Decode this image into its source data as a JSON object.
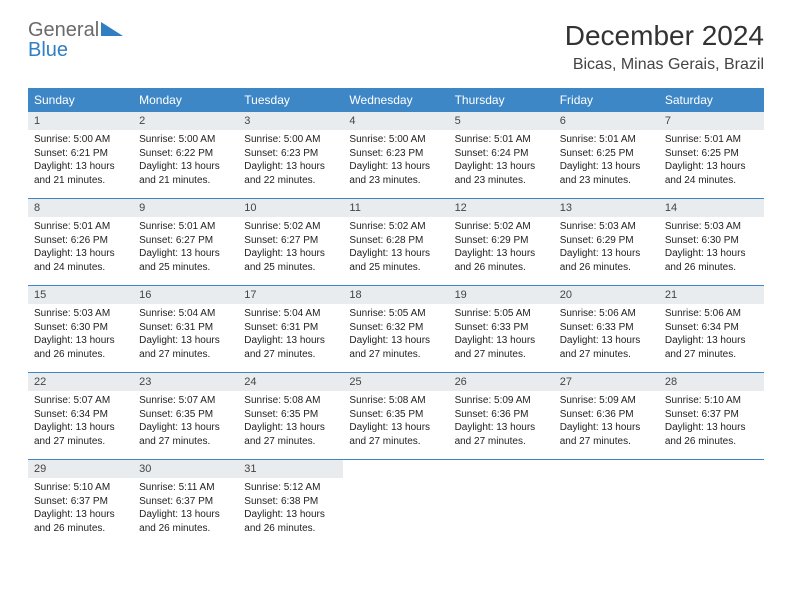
{
  "brand": {
    "general": "General",
    "blue": "Blue"
  },
  "title": "December 2024",
  "location": "Bicas, Minas Gerais, Brazil",
  "colors": {
    "header_bg": "#3d87c7",
    "header_text": "#ffffff",
    "daynum_bg": "#e9ecef",
    "border": "#3d87c7",
    "logo_gray": "#6a6a6a",
    "logo_blue": "#2f7fc2"
  },
  "weekdays": [
    "Sunday",
    "Monday",
    "Tuesday",
    "Wednesday",
    "Thursday",
    "Friday",
    "Saturday"
  ],
  "weeks": [
    [
      {
        "day": "1",
        "sunrise": "Sunrise: 5:00 AM",
        "sunset": "Sunset: 6:21 PM",
        "daylight": "Daylight: 13 hours and 21 minutes."
      },
      {
        "day": "2",
        "sunrise": "Sunrise: 5:00 AM",
        "sunset": "Sunset: 6:22 PM",
        "daylight": "Daylight: 13 hours and 21 minutes."
      },
      {
        "day": "3",
        "sunrise": "Sunrise: 5:00 AM",
        "sunset": "Sunset: 6:23 PM",
        "daylight": "Daylight: 13 hours and 22 minutes."
      },
      {
        "day": "4",
        "sunrise": "Sunrise: 5:00 AM",
        "sunset": "Sunset: 6:23 PM",
        "daylight": "Daylight: 13 hours and 23 minutes."
      },
      {
        "day": "5",
        "sunrise": "Sunrise: 5:01 AM",
        "sunset": "Sunset: 6:24 PM",
        "daylight": "Daylight: 13 hours and 23 minutes."
      },
      {
        "day": "6",
        "sunrise": "Sunrise: 5:01 AM",
        "sunset": "Sunset: 6:25 PM",
        "daylight": "Daylight: 13 hours and 23 minutes."
      },
      {
        "day": "7",
        "sunrise": "Sunrise: 5:01 AM",
        "sunset": "Sunset: 6:25 PM",
        "daylight": "Daylight: 13 hours and 24 minutes."
      }
    ],
    [
      {
        "day": "8",
        "sunrise": "Sunrise: 5:01 AM",
        "sunset": "Sunset: 6:26 PM",
        "daylight": "Daylight: 13 hours and 24 minutes."
      },
      {
        "day": "9",
        "sunrise": "Sunrise: 5:01 AM",
        "sunset": "Sunset: 6:27 PM",
        "daylight": "Daylight: 13 hours and 25 minutes."
      },
      {
        "day": "10",
        "sunrise": "Sunrise: 5:02 AM",
        "sunset": "Sunset: 6:27 PM",
        "daylight": "Daylight: 13 hours and 25 minutes."
      },
      {
        "day": "11",
        "sunrise": "Sunrise: 5:02 AM",
        "sunset": "Sunset: 6:28 PM",
        "daylight": "Daylight: 13 hours and 25 minutes."
      },
      {
        "day": "12",
        "sunrise": "Sunrise: 5:02 AM",
        "sunset": "Sunset: 6:29 PM",
        "daylight": "Daylight: 13 hours and 26 minutes."
      },
      {
        "day": "13",
        "sunrise": "Sunrise: 5:03 AM",
        "sunset": "Sunset: 6:29 PM",
        "daylight": "Daylight: 13 hours and 26 minutes."
      },
      {
        "day": "14",
        "sunrise": "Sunrise: 5:03 AM",
        "sunset": "Sunset: 6:30 PM",
        "daylight": "Daylight: 13 hours and 26 minutes."
      }
    ],
    [
      {
        "day": "15",
        "sunrise": "Sunrise: 5:03 AM",
        "sunset": "Sunset: 6:30 PM",
        "daylight": "Daylight: 13 hours and 26 minutes."
      },
      {
        "day": "16",
        "sunrise": "Sunrise: 5:04 AM",
        "sunset": "Sunset: 6:31 PM",
        "daylight": "Daylight: 13 hours and 27 minutes."
      },
      {
        "day": "17",
        "sunrise": "Sunrise: 5:04 AM",
        "sunset": "Sunset: 6:31 PM",
        "daylight": "Daylight: 13 hours and 27 minutes."
      },
      {
        "day": "18",
        "sunrise": "Sunrise: 5:05 AM",
        "sunset": "Sunset: 6:32 PM",
        "daylight": "Daylight: 13 hours and 27 minutes."
      },
      {
        "day": "19",
        "sunrise": "Sunrise: 5:05 AM",
        "sunset": "Sunset: 6:33 PM",
        "daylight": "Daylight: 13 hours and 27 minutes."
      },
      {
        "day": "20",
        "sunrise": "Sunrise: 5:06 AM",
        "sunset": "Sunset: 6:33 PM",
        "daylight": "Daylight: 13 hours and 27 minutes."
      },
      {
        "day": "21",
        "sunrise": "Sunrise: 5:06 AM",
        "sunset": "Sunset: 6:34 PM",
        "daylight": "Daylight: 13 hours and 27 minutes."
      }
    ],
    [
      {
        "day": "22",
        "sunrise": "Sunrise: 5:07 AM",
        "sunset": "Sunset: 6:34 PM",
        "daylight": "Daylight: 13 hours and 27 minutes."
      },
      {
        "day": "23",
        "sunrise": "Sunrise: 5:07 AM",
        "sunset": "Sunset: 6:35 PM",
        "daylight": "Daylight: 13 hours and 27 minutes."
      },
      {
        "day": "24",
        "sunrise": "Sunrise: 5:08 AM",
        "sunset": "Sunset: 6:35 PM",
        "daylight": "Daylight: 13 hours and 27 minutes."
      },
      {
        "day": "25",
        "sunrise": "Sunrise: 5:08 AM",
        "sunset": "Sunset: 6:35 PM",
        "daylight": "Daylight: 13 hours and 27 minutes."
      },
      {
        "day": "26",
        "sunrise": "Sunrise: 5:09 AM",
        "sunset": "Sunset: 6:36 PM",
        "daylight": "Daylight: 13 hours and 27 minutes."
      },
      {
        "day": "27",
        "sunrise": "Sunrise: 5:09 AM",
        "sunset": "Sunset: 6:36 PM",
        "daylight": "Daylight: 13 hours and 27 minutes."
      },
      {
        "day": "28",
        "sunrise": "Sunrise: 5:10 AM",
        "sunset": "Sunset: 6:37 PM",
        "daylight": "Daylight: 13 hours and 26 minutes."
      }
    ],
    [
      {
        "day": "29",
        "sunrise": "Sunrise: 5:10 AM",
        "sunset": "Sunset: 6:37 PM",
        "daylight": "Daylight: 13 hours and 26 minutes."
      },
      {
        "day": "30",
        "sunrise": "Sunrise: 5:11 AM",
        "sunset": "Sunset: 6:37 PM",
        "daylight": "Daylight: 13 hours and 26 minutes."
      },
      {
        "day": "31",
        "sunrise": "Sunrise: 5:12 AM",
        "sunset": "Sunset: 6:38 PM",
        "daylight": "Daylight: 13 hours and 26 minutes."
      },
      null,
      null,
      null,
      null
    ]
  ]
}
